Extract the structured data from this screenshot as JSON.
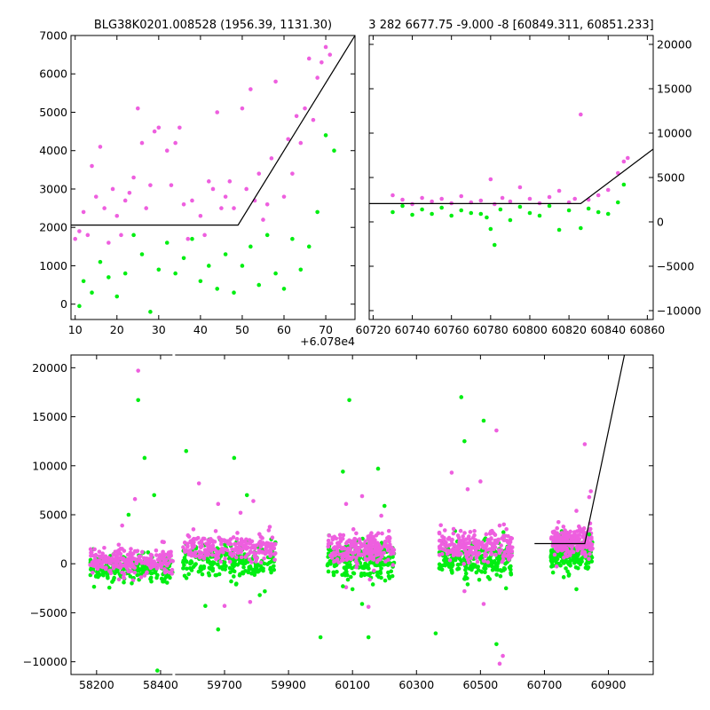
{
  "colors": {
    "magenta": "#ee5fdf",
    "green": "#00ee11",
    "model": "#000000"
  },
  "chart_data": [
    {
      "type": "scatter",
      "panel": "zoom-left",
      "title": "BLG38K0201.008528 (1956.39, 1131.30)",
      "x_offset_label": "+6.078e4",
      "xlim": [
        9,
        77
      ],
      "ylim": [
        -400,
        7000
      ],
      "xticks": [
        "10",
        "20",
        "30",
        "40",
        "50",
        "60",
        "70"
      ],
      "yticks": [
        "0",
        "1000",
        "2000",
        "3000",
        "4000",
        "5000",
        "6000",
        "7000"
      ],
      "xtick_values": [
        10,
        20,
        30,
        40,
        50,
        60,
        70
      ],
      "ytick_values": [
        0,
        1000,
        2000,
        3000,
        4000,
        5000,
        6000,
        7000
      ],
      "model": [
        [
          9,
          2060
        ],
        [
          49,
          2060
        ],
        [
          77,
          7000
        ]
      ],
      "series": [
        {
          "color": "magenta",
          "points": [
            [
              10,
              1700
            ],
            [
              11,
              1900
            ],
            [
              12,
              2400
            ],
            [
              13,
              1800
            ],
            [
              14,
              3600
            ],
            [
              15,
              2800
            ],
            [
              16,
              4100
            ],
            [
              17,
              2500
            ],
            [
              18,
              1600
            ],
            [
              19,
              3000
            ],
            [
              20,
              2300
            ],
            [
              21,
              1800
            ],
            [
              22,
              2700
            ],
            [
              23,
              2900
            ],
            [
              24,
              3300
            ],
            [
              25,
              5100
            ],
            [
              26,
              4200
            ],
            [
              27,
              2500
            ],
            [
              28,
              3100
            ],
            [
              29,
              4500
            ],
            [
              30,
              4600
            ],
            [
              32,
              4000
            ],
            [
              33,
              3100
            ],
            [
              34,
              4200
            ],
            [
              35,
              4600
            ],
            [
              36,
              2600
            ],
            [
              37,
              1700
            ],
            [
              38,
              2700
            ],
            [
              40,
              2300
            ],
            [
              41,
              1800
            ],
            [
              42,
              3200
            ],
            [
              43,
              3000
            ],
            [
              44,
              5000
            ],
            [
              45,
              2500
            ],
            [
              46,
              2800
            ],
            [
              47,
              3200
            ],
            [
              48,
              2500
            ],
            [
              50,
              5100
            ],
            [
              51,
              3000
            ],
            [
              52,
              5600
            ],
            [
              53,
              2700
            ],
            [
              54,
              3400
            ],
            [
              55,
              2200
            ],
            [
              56,
              2600
            ],
            [
              57,
              3800
            ],
            [
              58,
              5800
            ],
            [
              60,
              2800
            ],
            [
              61,
              4300
            ],
            [
              62,
              3400
            ],
            [
              63,
              4900
            ],
            [
              64,
              4200
            ],
            [
              65,
              5100
            ],
            [
              66,
              6400
            ],
            [
              67,
              4800
            ],
            [
              68,
              5900
            ],
            [
              69,
              6300
            ],
            [
              70,
              6700
            ],
            [
              71,
              6500
            ]
          ]
        },
        {
          "color": "green",
          "points": [
            [
              11,
              -50
            ],
            [
              12,
              600
            ],
            [
              14,
              300
            ],
            [
              16,
              1100
            ],
            [
              18,
              700
            ],
            [
              20,
              200
            ],
            [
              22,
              800
            ],
            [
              24,
              1800
            ],
            [
              26,
              1300
            ],
            [
              28,
              -200
            ],
            [
              30,
              900
            ],
            [
              32,
              1600
            ],
            [
              34,
              800
            ],
            [
              36,
              1200
            ],
            [
              38,
              1700
            ],
            [
              40,
              600
            ],
            [
              42,
              1000
            ],
            [
              44,
              400
            ],
            [
              46,
              1300
            ],
            [
              48,
              300
            ],
            [
              50,
              1000
            ],
            [
              52,
              1500
            ],
            [
              54,
              500
            ],
            [
              56,
              1800
            ],
            [
              58,
              800
            ],
            [
              60,
              400
            ],
            [
              62,
              1700
            ],
            [
              64,
              900
            ],
            [
              66,
              1500
            ],
            [
              68,
              2400
            ],
            [
              70,
              4400
            ],
            [
              72,
              4000
            ]
          ]
        }
      ]
    },
    {
      "type": "scatter",
      "panel": "zoom-right",
      "title": "3 282 6677.75 -9.000 -8 [60849.311, 60851.233]",
      "xlim": [
        60718,
        60863
      ],
      "ylim": [
        -11000,
        21000
      ],
      "xticks": [
        "60720",
        "60740",
        "60760",
        "60780",
        "60800",
        "60820",
        "60840",
        "60860"
      ],
      "yticks": [
        "−10000",
        "−5000",
        "0",
        "5000",
        "10000",
        "15000",
        "20000"
      ],
      "xtick_values": [
        60720,
        60740,
        60760,
        60780,
        60800,
        60820,
        60840,
        60860
      ],
      "ytick_values": [
        -10000,
        -5000,
        0,
        5000,
        10000,
        15000,
        20000
      ],
      "model": [
        [
          60718,
          2060
        ],
        [
          60826,
          2060
        ],
        [
          60863,
          8200
        ]
      ],
      "series": [
        {
          "color": "magenta",
          "points": [
            [
              60730,
              3000
            ],
            [
              60735,
              2500
            ],
            [
              60740,
              2000
            ],
            [
              60745,
              2700
            ],
            [
              60750,
              2300
            ],
            [
              60755,
              2600
            ],
            [
              60760,
              2100
            ],
            [
              60765,
              2900
            ],
            [
              60770,
              2200
            ],
            [
              60775,
              2400
            ],
            [
              60780,
              4800
            ],
            [
              60782,
              2000
            ],
            [
              60786,
              2700
            ],
            [
              60790,
              2300
            ],
            [
              60795,
              3900
            ],
            [
              60800,
              2600
            ],
            [
              60805,
              2100
            ],
            [
              60810,
              2800
            ],
            [
              60815,
              3500
            ],
            [
              60820,
              2200
            ],
            [
              60823,
              2600
            ],
            [
              60826,
              12100
            ],
            [
              60830,
              2500
            ],
            [
              60835,
              3000
            ],
            [
              60840,
              3600
            ],
            [
              60845,
              5500
            ],
            [
              60848,
              6800
            ],
            [
              60850,
              7200
            ]
          ]
        },
        {
          "color": "green",
          "points": [
            [
              60730,
              1100
            ],
            [
              60735,
              1800
            ],
            [
              60740,
              800
            ],
            [
              60745,
              1400
            ],
            [
              60750,
              900
            ],
            [
              60755,
              1600
            ],
            [
              60760,
              700
            ],
            [
              60765,
              1300
            ],
            [
              60770,
              1000
            ],
            [
              60775,
              900
            ],
            [
              60778,
              500
            ],
            [
              60780,
              -800
            ],
            [
              60782,
              -2600
            ],
            [
              60785,
              1400
            ],
            [
              60790,
              200
            ],
            [
              60795,
              1700
            ],
            [
              60800,
              1000
            ],
            [
              60805,
              700
            ],
            [
              60810,
              1800
            ],
            [
              60815,
              -900
            ],
            [
              60820,
              1300
            ],
            [
              60826,
              -700
            ],
            [
              60830,
              1500
            ],
            [
              60835,
              1100
            ],
            [
              60840,
              900
            ],
            [
              60845,
              2200
            ],
            [
              60848,
              4200
            ]
          ]
        }
      ]
    },
    {
      "type": "scatter",
      "panel": "full",
      "xlim": [
        58120,
        61040
      ],
      "ylim": [
        -11300,
        21300
      ],
      "xticks": [
        "58200",
        "58400",
        "59700",
        "59900",
        "60100",
        "60300",
        "60500",
        "60700",
        "60900"
      ],
      "yticks": [
        "−10000",
        "−5000",
        "0",
        "5000",
        "10000",
        "15000",
        "20000"
      ],
      "xtick_values": [
        58200,
        58400,
        59700,
        59900,
        60100,
        60300,
        60500,
        60700,
        60900
      ],
      "ytick_values": [
        -10000,
        -5000,
        0,
        5000,
        10000,
        15000,
        20000
      ],
      "axis_break": [
        58440,
        59540
      ],
      "model": [
        [
          60669,
          2060
        ],
        [
          60826,
          2060
        ],
        [
          60950,
          21300
        ]
      ],
      "clusters": [
        {
          "range": [
            58180,
            58440
          ],
          "m_y": [
            300,
            700
          ],
          "g_y": [
            -500,
            700
          ]
        },
        {
          "range": [
            59570,
            59860
          ],
          "m_y": [
            1600,
            700
          ],
          "g_y": [
            200,
            900
          ]
        },
        {
          "range": [
            60020,
            60230
          ],
          "m_y": [
            1500,
            700
          ],
          "g_y": [
            300,
            900
          ]
        },
        {
          "range": [
            60370,
            60600
          ],
          "m_y": [
            1800,
            800
          ],
          "g_y": [
            400,
            900
          ]
        },
        {
          "range": [
            60720,
            60850
          ],
          "m_y": [
            2200,
            700
          ],
          "g_y": [
            1000,
            800
          ]
        }
      ],
      "series": [
        {
          "color": "magenta",
          "points": [
            [
              58330,
              19700
            ],
            [
              58320,
              6600
            ],
            [
              58280,
              3900
            ],
            [
              59620,
              8200
            ],
            [
              59680,
              6100
            ],
            [
              59750,
              5200
            ],
            [
              59790,
              6400
            ],
            [
              60080,
              6100
            ],
            [
              60130,
              6900
            ],
            [
              60190,
              4900
            ],
            [
              60410,
              9300
            ],
            [
              60460,
              7600
            ],
            [
              60500,
              8400
            ],
            [
              60550,
              13600
            ],
            [
              60560,
              3900
            ],
            [
              60800,
              5400
            ],
            [
              60826,
              12200
            ],
            [
              60840,
              6800
            ],
            [
              60845,
              7400
            ],
            [
              59700,
              -4300
            ],
            [
              59780,
              -3900
            ],
            [
              60080,
              -2400
            ],
            [
              60150,
              -4400
            ],
            [
              60450,
              -2800
            ],
            [
              60510,
              -4100
            ],
            [
              60570,
              -9400
            ],
            [
              60560,
              -10200
            ],
            [
              58270,
              -1600
            ],
            [
              58350,
              -1200
            ]
          ]
        },
        {
          "color": "green",
          "points": [
            [
              58330,
              16700
            ],
            [
              58350,
              10800
            ],
            [
              58380,
              7000
            ],
            [
              58300,
              5000
            ],
            [
              58390,
              -10900
            ],
            [
              58310,
              -2000
            ],
            [
              58410,
              -1800
            ],
            [
              59580,
              11500
            ],
            [
              59730,
              10800
            ],
            [
              59770,
              7000
            ],
            [
              59640,
              -4300
            ],
            [
              59680,
              -6700
            ],
            [
              59810,
              -3200
            ],
            [
              60000,
              -7500
            ],
            [
              60090,
              16700
            ],
            [
              60070,
              9400
            ],
            [
              60180,
              9700
            ],
            [
              60200,
              5900
            ],
            [
              60130,
              -4100
            ],
            [
              60150,
              -7500
            ],
            [
              60070,
              -2300
            ],
            [
              60100,
              -2600
            ],
            [
              60360,
              -7100
            ],
            [
              60440,
              17000
            ],
            [
              60450,
              12500
            ],
            [
              60510,
              14600
            ],
            [
              60460,
              -2100
            ],
            [
              60580,
              -2500
            ],
            [
              60550,
              -8200
            ],
            [
              60840,
              3000
            ],
            [
              60800,
              -2600
            ]
          ]
        }
      ]
    }
  ]
}
